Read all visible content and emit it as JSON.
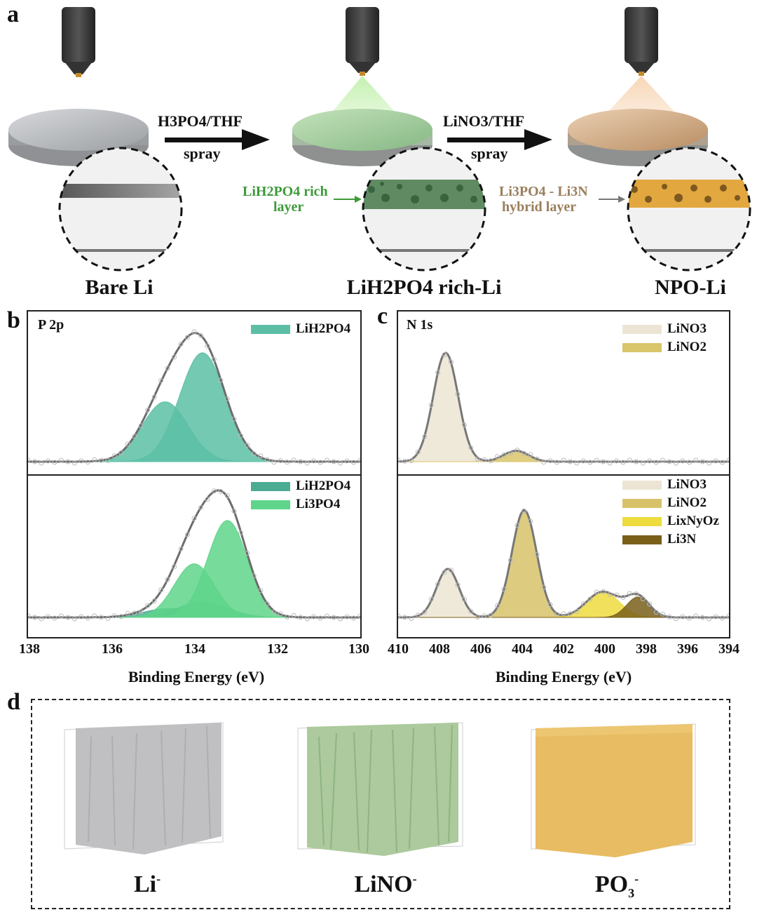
{
  "panel_a": {
    "letter": "a",
    "steps": [
      {
        "caption": "Bare Li"
      },
      {
        "arrow_top": "H3PO4/THF",
        "arrow_bottom": "spray",
        "layer_label_1": "LiH2PO4 rich",
        "layer_label_2": "layer",
        "caption": "LiH2PO4 rich-Li"
      },
      {
        "arrow_top": "LiNO3/THF",
        "arrow_bottom": "spray",
        "layer_label_1": "Li3PO4 - Li3N",
        "layer_label_2": "hybrid layer",
        "caption": "NPO-Li"
      }
    ],
    "colors": {
      "bare": "#b8bbbf",
      "lih2po4": "#9cc79a",
      "npo": "#caa07a",
      "layer_green": "#3d9a3a",
      "layer_brown": "#9a7f5c"
    }
  },
  "panel_b": {
    "letter": "b",
    "title": "P 2p",
    "xlabel": "Binding Energy (eV)",
    "xticks": [
      "138",
      "136",
      "134",
      "132",
      "130"
    ]
  },
  "panel_c": {
    "letter": "c",
    "title": "N 1s",
    "xlabel": "Binding Energy (eV)",
    "xticks": [
      "410",
      "408",
      "406",
      "404",
      "402",
      "400",
      "398",
      "396",
      "394"
    ]
  },
  "panel_d": {
    "letter": "d",
    "cubes": [
      {
        "label": "Li",
        "sup": "-",
        "color": "#b9b9bc"
      },
      {
        "label": "LiNO",
        "sup": "-",
        "color": "#a9c99a"
      },
      {
        "label": "PO",
        "sub": "3",
        "sup": "-",
        "color": "#e6bb62"
      }
    ]
  },
  "chart_data": [
    {
      "type": "area",
      "title": "P 2p",
      "xlabel": "Binding Energy (eV)",
      "xlim": [
        138,
        130
      ],
      "subplots": [
        {
          "series": [
            {
              "name": "LiH2PO4",
              "color": "#5cbfa5",
              "peaks": [
                {
                  "center": 133.8,
                  "height": 0.8,
                  "sigma": 0.55
                },
                {
                  "center": 134.7,
                  "height": 0.44,
                  "sigma": 0.55
                }
              ]
            }
          ],
          "envelope_color": "#6d6d6d"
        },
        {
          "series": [
            {
              "name": "LiH2PO4",
              "color": "#4cab93",
              "peaks": [
                {
                  "center": 133.8,
                  "height": 0.12,
                  "sigma": 0.6
                },
                {
                  "center": 134.6,
                  "height": 0.07,
                  "sigma": 0.6
                }
              ]
            },
            {
              "name": "Li3PO4",
              "color": "#5ed58a",
              "peaks": [
                {
                  "center": 133.2,
                  "height": 0.76,
                  "sigma": 0.48
                },
                {
                  "center": 134.0,
                  "height": 0.42,
                  "sigma": 0.48
                }
              ]
            }
          ],
          "envelope_color": "#6d6d6d"
        }
      ]
    },
    {
      "type": "area",
      "title": "N 1s",
      "xlabel": "Binding Energy (eV)",
      "xlim": [
        410,
        394
      ],
      "subplots": [
        {
          "series": [
            {
              "name": "LiNO3",
              "color": "#ece5d4",
              "peaks": [
                {
                  "center": 407.7,
                  "height": 0.8,
                  "sigma": 0.6
                }
              ]
            },
            {
              "name": "LiNO2",
              "color": "#d9c56a",
              "peaks": [
                {
                  "center": 404.3,
                  "height": 0.08,
                  "sigma": 0.6
                }
              ]
            }
          ],
          "envelope_color": "#777"
        },
        {
          "series": [
            {
              "name": "LiNO3",
              "color": "#ece5d4",
              "peaks": [
                {
                  "center": 407.6,
                  "height": 0.38,
                  "sigma": 0.55
                }
              ]
            },
            {
              "name": "LiNO2",
              "color": "#d7c26a",
              "peaks": [
                {
                  "center": 403.9,
                  "height": 0.84,
                  "sigma": 0.6
                }
              ]
            },
            {
              "name": "LixNyOz",
              "color": "#eedb3e",
              "peaks": [
                {
                  "center": 400.1,
                  "height": 0.2,
                  "sigma": 0.8
                }
              ]
            },
            {
              "name": "Li3N",
              "color": "#7a5f1a",
              "peaks": [
                {
                  "center": 398.4,
                  "height": 0.16,
                  "sigma": 0.55
                }
              ]
            }
          ],
          "envelope_color": "#777"
        }
      ]
    }
  ]
}
